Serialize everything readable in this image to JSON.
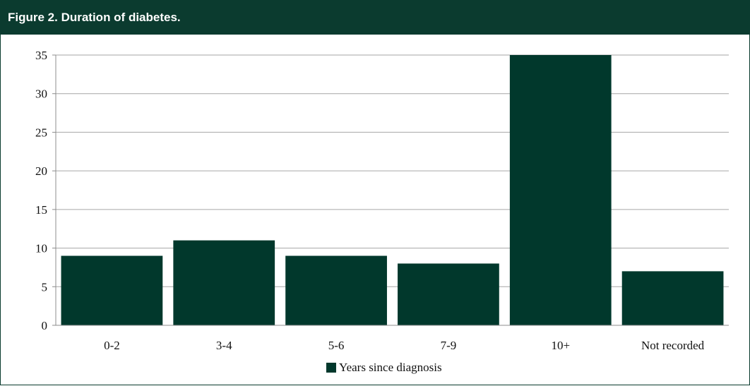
{
  "figure": {
    "title": "Figure 2. Duration of diabetes."
  },
  "chart_data": {
    "type": "bar",
    "categories": [
      "0-2",
      "3-4",
      "5-6",
      "7-9",
      "10+",
      "Not recorded"
    ],
    "series": [
      {
        "name": "Years since diagnosis",
        "values": [
          9,
          11,
          9,
          8,
          35,
          7
        ],
        "color": "#01382c"
      }
    ],
    "ylim": [
      0,
      35
    ],
    "yticks": [
      0,
      5,
      10,
      15,
      20,
      25,
      30,
      35
    ],
    "grid": true,
    "legend": "bottom-center",
    "title": "Figure 2. Duration of diabetes.",
    "xlabel": "",
    "ylabel": ""
  },
  "colors": {
    "title_bar": "#0b3b2f",
    "bar": "#01382c",
    "gridline": "#a6a6a6",
    "axis": "#8c8c8c"
  }
}
